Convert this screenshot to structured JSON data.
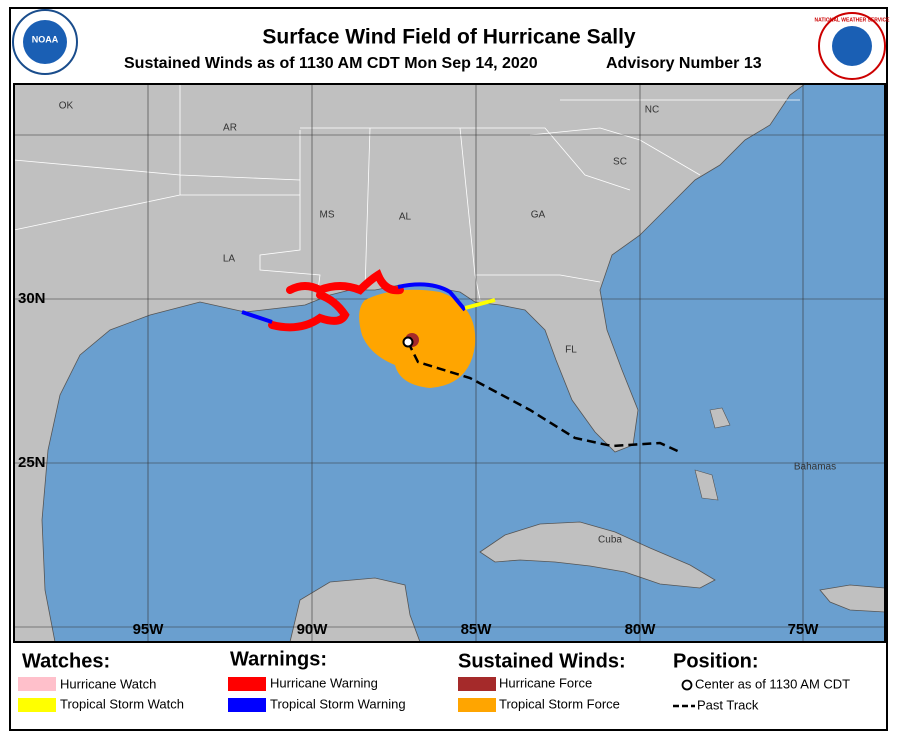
{
  "header": {
    "title": "Surface Wind Field of Hurricane Sally",
    "subtitle": "Sustained Winds as of 1130 AM CDT Mon Sep 14, 2020",
    "advisory": "Advisory Number 13"
  },
  "logos": {
    "left": "NOAA",
    "right": "NATIONAL WEATHER SERVICE"
  },
  "map": {
    "state_labels": [
      "OK",
      "AR",
      "MS",
      "AL",
      "LA",
      "GA",
      "SC",
      "NC",
      "FL"
    ],
    "place_labels": [
      "Bahamas",
      "Cuba"
    ],
    "lat_labels": [
      "30N",
      "25N"
    ],
    "lon_labels": [
      "95W",
      "90W",
      "85W",
      "80W",
      "75W"
    ]
  },
  "legend": {
    "watches": {
      "title": "Watches:",
      "items": [
        {
          "label": "Hurricane Watch",
          "color": "#ffc0cb"
        },
        {
          "label": "Tropical Storm Watch",
          "color": "#ffff00"
        }
      ]
    },
    "warnings": {
      "title": "Warnings:",
      "items": [
        {
          "label": "Hurricane Warning",
          "color": "#ff0000"
        },
        {
          "label": "Tropical Storm Warning",
          "color": "#0000ff"
        }
      ]
    },
    "winds": {
      "title": "Sustained Winds:",
      "items": [
        {
          "label": "Hurricane Force",
          "color": "#a52a2a"
        },
        {
          "label": "Tropical Storm Force",
          "color": "#ffa500"
        }
      ]
    },
    "position": {
      "title": "Position:",
      "items": [
        "Center as of 1130 AM CDT",
        "Past Track"
      ]
    }
  }
}
